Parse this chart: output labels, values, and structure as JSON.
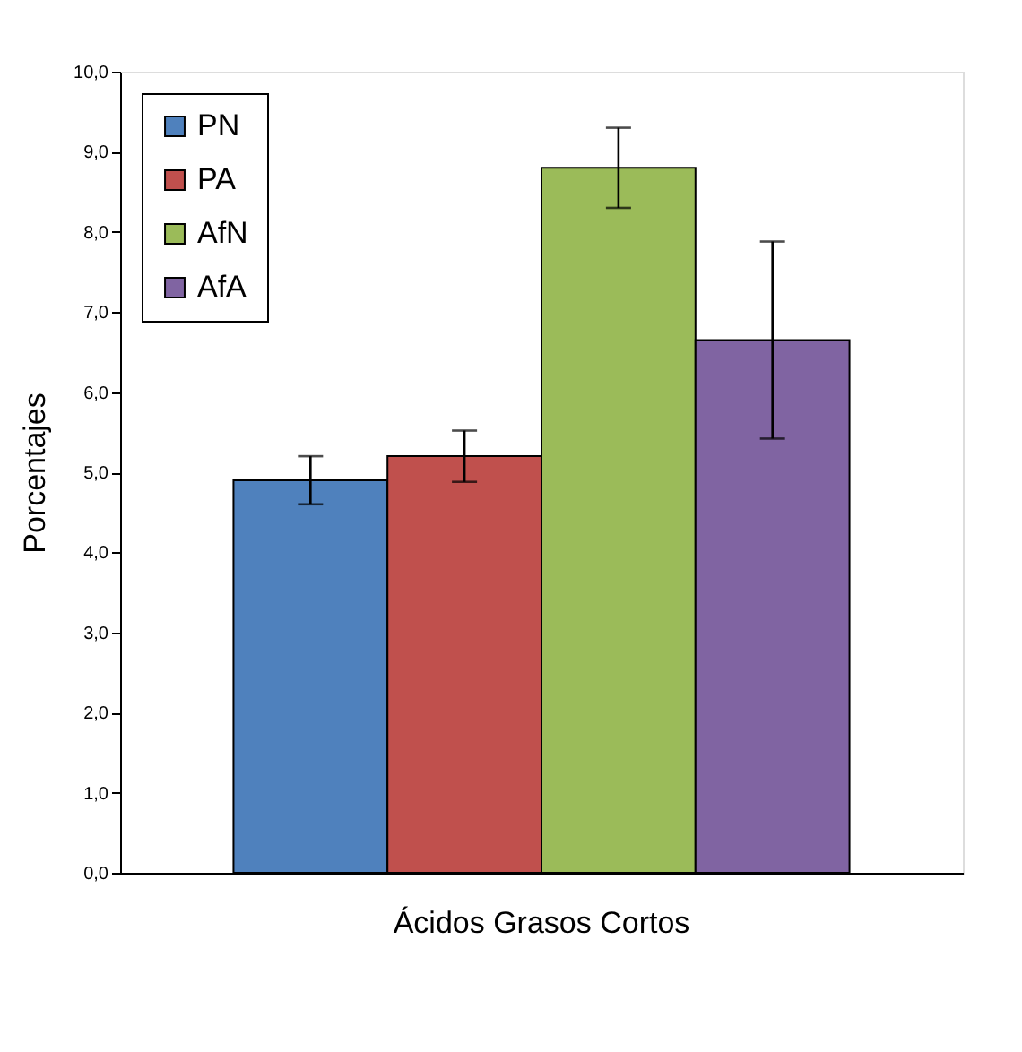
{
  "chart_data": {
    "type": "bar",
    "ylabel": "Porcentajes",
    "categories": [
      "Ácidos Grasos Cortos"
    ],
    "series": [
      {
        "name": "PN",
        "color": "#4f81bd",
        "values": [
          4.9
        ],
        "errors": [
          0.3
        ]
      },
      {
        "name": "PA",
        "color": "#c0504d",
        "values": [
          5.2
        ],
        "errors": [
          0.32
        ]
      },
      {
        "name": "AfN",
        "color": "#9bbb59",
        "values": [
          8.8
        ],
        "errors": [
          0.5
        ]
      },
      {
        "name": "AfA",
        "color": "#8064a2",
        "values": [
          6.65
        ],
        "errors": [
          1.23
        ]
      }
    ],
    "ylim": [
      0,
      10
    ],
    "yticks": [
      {
        "value": 0,
        "label": "0,0"
      },
      {
        "value": 1,
        "label": "1,0"
      },
      {
        "value": 2,
        "label": "2,0"
      },
      {
        "value": 3,
        "label": "3,0"
      },
      {
        "value": 4,
        "label": "4,0"
      },
      {
        "value": 5,
        "label": "5,0"
      },
      {
        "value": 6,
        "label": "6,0"
      },
      {
        "value": 7,
        "label": "7,0"
      },
      {
        "value": 8,
        "label": "8,0"
      },
      {
        "value": 9,
        "label": "9,0"
      },
      {
        "value": 10,
        "label": "10,0"
      }
    ],
    "grid": false,
    "legend": "top left"
  }
}
